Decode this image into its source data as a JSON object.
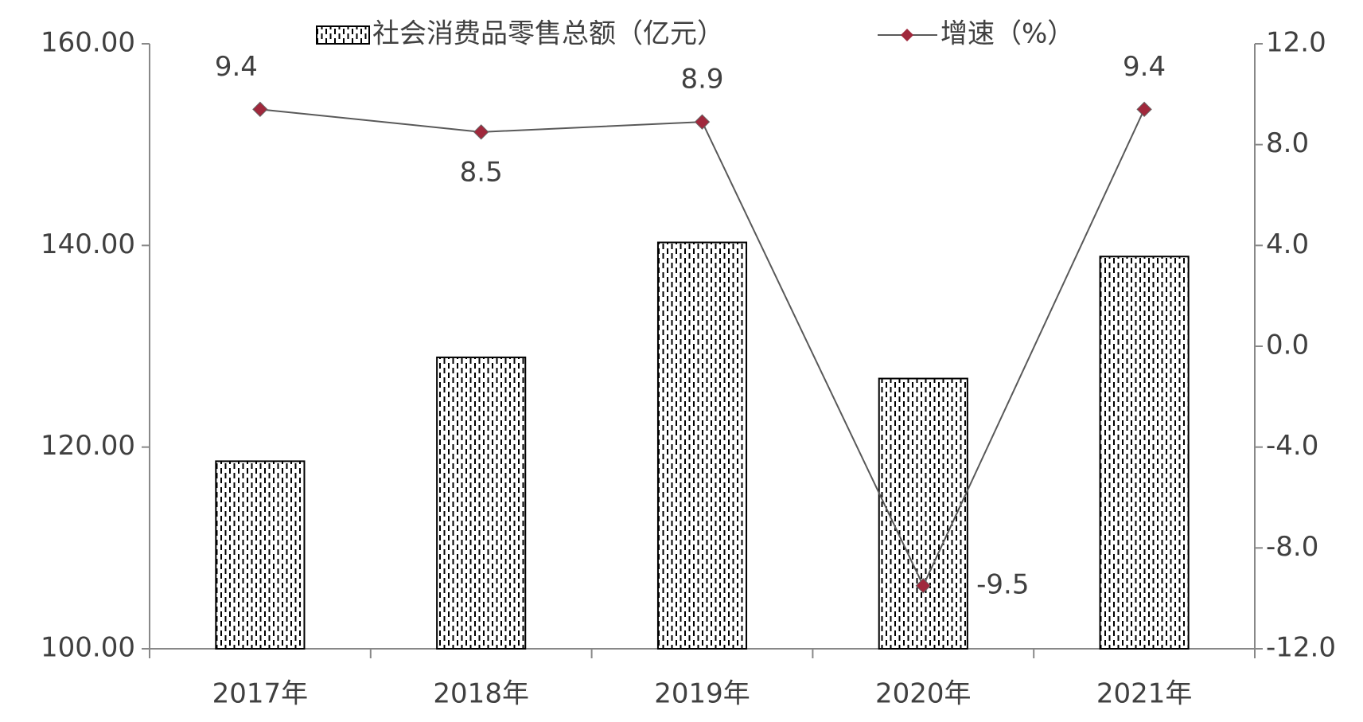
{
  "chart_data": {
    "type": "bar-line",
    "categories": [
      "2017年",
      "2018年",
      "2019年",
      "2020年",
      "2021年"
    ],
    "series": [
      {
        "name": "社会消费品零售总额（亿元）",
        "type": "bar",
        "color": "#000000",
        "values": [
          118.6,
          128.9,
          140.3,
          126.8,
          138.9
        ]
      },
      {
        "name": "增速（%）",
        "type": "line",
        "axis": "y2",
        "color": "#595959",
        "marker_color": "#a0283c",
        "values": [
          9.4,
          8.5,
          8.9,
          -9.5,
          9.4
        ]
      }
    ],
    "ylim": [
      100,
      160
    ],
    "yticks": [
      {
        "value": 100,
        "label": "100.00"
      },
      {
        "value": 120,
        "label": "120.00"
      },
      {
        "value": 140,
        "label": "140.00"
      },
      {
        "value": 160,
        "label": "160.00"
      }
    ],
    "y2lim": [
      -12,
      12
    ],
    "y2ticks": [
      {
        "value": -12,
        "label": "-12.0"
      },
      {
        "value": -8,
        "label": "-8.0"
      },
      {
        "value": -4,
        "label": "-4.0"
      },
      {
        "value": 0,
        "label": "0.0"
      },
      {
        "value": 4,
        "label": "4.0"
      },
      {
        "value": 8,
        "label": "8.0"
      },
      {
        "value": 12,
        "label": "12.0"
      }
    ],
    "grid": false
  }
}
